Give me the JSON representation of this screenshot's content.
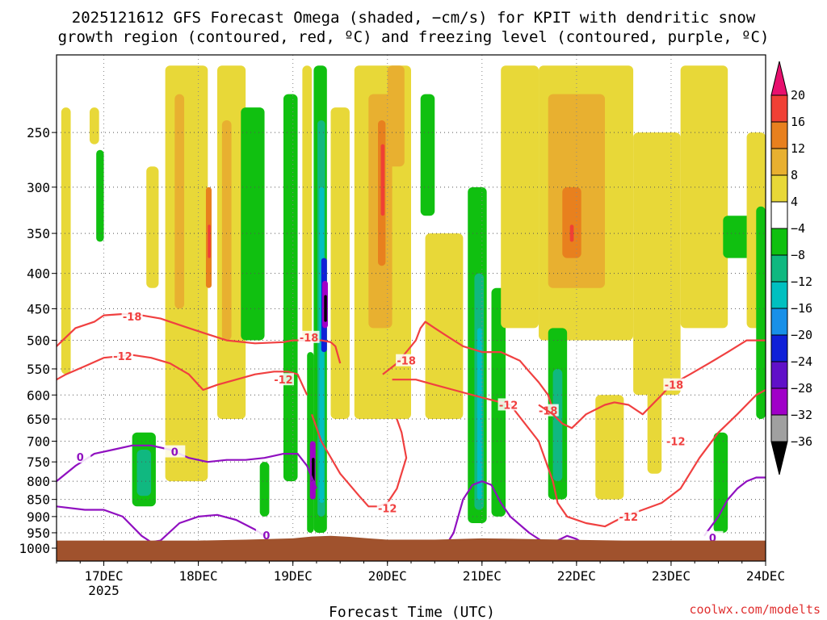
{
  "chart_data": {
    "type": "heatmap",
    "title_line1": "2025121612 GFS Forecast Omega (shaded, −cm/s) for KPIT with dendritic snow",
    "title_line2": "growth region (contoured, red, ºC) and freezing level (contoured, purple, ºC)",
    "xlabel": "Forecast Time (UTC)",
    "credit": "coolwx.com/modelts",
    "x_range": [
      16.5,
      24.0
    ],
    "x_ticks": [
      {
        "value": 17,
        "label": "17DEC",
        "sublabel": "2025"
      },
      {
        "value": 18,
        "label": "18DEC"
      },
      {
        "value": 19,
        "label": "19DEC"
      },
      {
        "value": 20,
        "label": "20DEC"
      },
      {
        "value": 21,
        "label": "21DEC"
      },
      {
        "value": 22,
        "label": "22DEC"
      },
      {
        "value": 23,
        "label": "23DEC"
      },
      {
        "value": 24,
        "label": "24DEC"
      }
    ],
    "y_axis": "pressure (hPa), log scale",
    "y_range": [
      1044,
      193
    ],
    "y_ticks": [
      {
        "value": 250,
        "label": "250"
      },
      {
        "value": 300,
        "label": "300"
      },
      {
        "value": 350,
        "label": "350"
      },
      {
        "value": 400,
        "label": "400"
      },
      {
        "value": 450,
        "label": "450"
      },
      {
        "value": 500,
        "label": "500"
      },
      {
        "value": 550,
        "label": "550"
      },
      {
        "value": 600,
        "label": "600"
      },
      {
        "value": 650,
        "label": "650"
      },
      {
        "value": 700,
        "label": "700"
      },
      {
        "value": 750,
        "label": "750"
      },
      {
        "value": 800,
        "label": "800"
      },
      {
        "value": 850,
        "label": "850"
      },
      {
        "value": 900,
        "label": "900"
      },
      {
        "value": 950,
        "label": "950"
      },
      {
        "value": 1000,
        "label": "1000"
      }
    ],
    "colorbar": {
      "levels": [
        20,
        16,
        12,
        8,
        4,
        -4,
        -8,
        -12,
        -16,
        -20,
        -24,
        -28,
        -32,
        -36
      ],
      "labels": [
        "20",
        "16",
        "12",
        "8",
        "4",
        "−4",
        "−8",
        "−12",
        "−16",
        "−20",
        "−24",
        "−28",
        "−32",
        "−36"
      ],
      "colors": [
        "#e8106e",
        "#f04035",
        "#e8801e",
        "#e8b030",
        "#e8d838",
        "#ffffff",
        "#10c010",
        "#10b880",
        "#00c0c0",
        "#1890e8",
        "#1020d8",
        "#6010c8",
        "#a000c8",
        "#a0a0a0",
        "#000000"
      ]
    },
    "shaded_regions": [
      {
        "x0": 16.55,
        "x1": 16.65,
        "p0": 230,
        "p1": 560,
        "level": 4
      },
      {
        "x0": 16.85,
        "x1": 16.95,
        "p0": 230,
        "p1": 260,
        "level": 4
      },
      {
        "x0": 16.92,
        "x1": 17.0,
        "p0": 265,
        "p1": 360,
        "level": -4
      },
      {
        "x0": 17.45,
        "x1": 17.58,
        "p0": 280,
        "p1": 420,
        "level": 4
      },
      {
        "x0": 17.65,
        "x1": 18.1,
        "p0": 200,
        "p1": 800,
        "level": 4
      },
      {
        "x0": 17.75,
        "x1": 17.85,
        "p0": 220,
        "p1": 450,
        "level": 8
      },
      {
        "x0": 18.08,
        "x1": 18.14,
        "p0": 300,
        "p1": 420,
        "level": 12
      },
      {
        "x0": 18.1,
        "x1": 18.13,
        "p0": 340,
        "p1": 380,
        "level": 16
      },
      {
        "x0": 18.2,
        "x1": 18.5,
        "p0": 200,
        "p1": 650,
        "level": 4
      },
      {
        "x0": 18.25,
        "x1": 18.35,
        "p0": 240,
        "p1": 500,
        "level": 8
      },
      {
        "x0": 18.45,
        "x1": 18.7,
        "p0": 230,
        "p1": 500,
        "level": -4
      },
      {
        "x0": 18.9,
        "x1": 19.05,
        "p0": 220,
        "p1": 800,
        "level": -4
      },
      {
        "x0": 19.1,
        "x1": 19.2,
        "p0": 200,
        "p1": 500,
        "level": 4
      },
      {
        "x0": 19.15,
        "x1": 19.22,
        "p0": 520,
        "p1": 950,
        "level": -4
      },
      {
        "x0": 19.22,
        "x1": 19.36,
        "p0": 200,
        "p1": 950,
        "level": -4
      },
      {
        "x0": 19.26,
        "x1": 19.34,
        "p0": 240,
        "p1": 900,
        "level": -8
      },
      {
        "x0": 19.28,
        "x1": 19.33,
        "p0": 300,
        "p1": 860,
        "level": -12
      },
      {
        "x0": 19.3,
        "x1": 19.36,
        "p0": 380,
        "p1": 520,
        "level": -20
      },
      {
        "x0": 19.31,
        "x1": 19.37,
        "p0": 410,
        "p1": 480,
        "level": -28
      },
      {
        "x0": 19.33,
        "x1": 19.36,
        "p0": 430,
        "p1": 470,
        "level": -36
      },
      {
        "x0": 19.18,
        "x1": 19.24,
        "p0": 700,
        "p1": 850,
        "level": -28
      },
      {
        "x0": 19.2,
        "x1": 19.23,
        "p0": 740,
        "p1": 800,
        "level": -36
      },
      {
        "x0": 19.4,
        "x1": 19.6,
        "p0": 230,
        "p1": 650,
        "level": 4
      },
      {
        "x0": 19.65,
        "x1": 20.25,
        "p0": 200,
        "p1": 650,
        "level": 4
      },
      {
        "x0": 19.8,
        "x1": 20.05,
        "p0": 220,
        "p1": 480,
        "level": 8
      },
      {
        "x0": 19.9,
        "x1": 19.98,
        "p0": 240,
        "p1": 390,
        "level": 12
      },
      {
        "x0": 19.93,
        "x1": 19.97,
        "p0": 260,
        "p1": 330,
        "level": 16
      },
      {
        "x0": 20.0,
        "x1": 20.18,
        "p0": 200,
        "p1": 280,
        "level": 8
      },
      {
        "x0": 20.35,
        "x1": 20.5,
        "p0": 220,
        "p1": 330,
        "level": -4
      },
      {
        "x0": 20.4,
        "x1": 20.8,
        "p0": 350,
        "p1": 650,
        "level": 4
      },
      {
        "x0": 20.85,
        "x1": 21.05,
        "p0": 300,
        "p1": 920,
        "level": -4
      },
      {
        "x0": 20.92,
        "x1": 21.02,
        "p0": 400,
        "p1": 880,
        "level": -8
      },
      {
        "x0": 20.95,
        "x1": 21.0,
        "p0": 480,
        "p1": 850,
        "level": -12
      },
      {
        "x0": 21.1,
        "x1": 21.25,
        "p0": 420,
        "p1": 900,
        "level": -4
      },
      {
        "x0": 21.2,
        "x1": 21.6,
        "p0": 200,
        "p1": 480,
        "level": 4
      },
      {
        "x0": 21.6,
        "x1": 22.6,
        "p0": 200,
        "p1": 500,
        "level": 4
      },
      {
        "x0": 21.7,
        "x1": 22.3,
        "p0": 220,
        "p1": 420,
        "level": 8
      },
      {
        "x0": 21.85,
        "x1": 22.05,
        "p0": 300,
        "p1": 380,
        "level": 12
      },
      {
        "x0": 21.93,
        "x1": 21.97,
        "p0": 340,
        "p1": 360,
        "level": 16
      },
      {
        "x0": 21.7,
        "x1": 21.9,
        "p0": 480,
        "p1": 850,
        "level": -4
      },
      {
        "x0": 21.75,
        "x1": 21.85,
        "p0": 550,
        "p1": 800,
        "level": -8
      },
      {
        "x0": 22.2,
        "x1": 22.5,
        "p0": 600,
        "p1": 850,
        "level": 4
      },
      {
        "x0": 22.6,
        "x1": 23.1,
        "p0": 250,
        "p1": 600,
        "level": 4
      },
      {
        "x0": 22.75,
        "x1": 22.9,
        "p0": 550,
        "p1": 780,
        "level": 4
      },
      {
        "x0": 23.1,
        "x1": 23.6,
        "p0": 200,
        "p1": 480,
        "level": 4
      },
      {
        "x0": 23.45,
        "x1": 23.6,
        "p0": 680,
        "p1": 950,
        "level": -4
      },
      {
        "x0": 23.55,
        "x1": 23.9,
        "p0": 330,
        "p1": 380,
        "level": -4
      },
      {
        "x0": 23.8,
        "x1": 24.0,
        "p0": 250,
        "p1": 480,
        "level": 4
      },
      {
        "x0": 23.9,
        "x1": 24.0,
        "p0": 320,
        "p1": 650,
        "level": -4
      },
      {
        "x0": 17.3,
        "x1": 17.55,
        "p0": 680,
        "p1": 870,
        "level": -4
      },
      {
        "x0": 17.35,
        "x1": 17.5,
        "p0": 720,
        "p1": 840,
        "level": -8
      },
      {
        "x0": 18.65,
        "x1": 18.75,
        "p0": 750,
        "p1": 900,
        "level": -4
      }
    ],
    "contours": [
      {
        "name": "dgz-upper",
        "label": "-18",
        "color": "#f04040",
        "x": [
          16.5,
          16.7,
          16.9,
          17.0,
          17.2,
          17.4,
          17.6,
          17.7,
          17.9,
          18.1,
          18.3,
          18.6,
          18.9,
          19.0,
          19.1,
          19.3,
          19.4,
          19.45,
          19.5
        ],
        "p": [
          510,
          480,
          470,
          460,
          458,
          460,
          465,
          470,
          480,
          490,
          500,
          505,
          503,
          500,
          500,
          500,
          503,
          510,
          540
        ],
        "labels": [
          {
            "x": 17.3,
            "p": 462,
            "text": "-18"
          },
          {
            "x": 19.17,
            "p": 495,
            "text": "-18"
          }
        ]
      },
      {
        "name": "dgz-mid",
        "label": "-18",
        "color": "#f04040",
        "x": [
          19.95,
          20.1,
          20.2,
          20.3,
          20.35,
          20.4,
          20.5,
          20.6,
          20.7,
          20.8,
          21.0,
          21.2,
          21.4,
          21.5,
          21.6,
          21.7,
          21.75
        ],
        "p": [
          560,
          540,
          520,
          500,
          480,
          470,
          480,
          490,
          500,
          510,
          520,
          520,
          535,
          555,
          575,
          600,
          630
        ],
        "labels": [
          {
            "x": 20.2,
            "p": 535,
            "text": "-18"
          },
          {
            "x": 21.7,
            "p": 632,
            "text": "-18"
          }
        ]
      },
      {
        "name": "dgz-right",
        "label": "-18",
        "color": "#f04040",
        "x": [
          21.6,
          21.75,
          21.85,
          21.95,
          22.0,
          22.1,
          22.3,
          22.4,
          22.55,
          22.7,
          22.9,
          23.0,
          23.2,
          23.4,
          23.6,
          23.8,
          24.0
        ],
        "p": [
          620,
          640,
          660,
          670,
          660,
          640,
          620,
          615,
          620,
          640,
          600,
          580,
          560,
          540,
          520,
          500,
          500
        ],
        "labels": [
          {
            "x": 23.03,
            "p": 580,
            "text": "-18"
          }
        ]
      },
      {
        "name": "dgz-lower",
        "label": "-12",
        "color": "#f04040",
        "x": [
          16.5,
          16.6,
          16.8,
          17.0,
          17.3,
          17.5,
          17.7,
          17.9,
          18.05,
          18.2,
          18.4,
          18.6,
          18.8,
          18.95,
          19.05,
          19.15
        ],
        "p": [
          570,
          560,
          545,
          530,
          525,
          530,
          540,
          560,
          590,
          580,
          570,
          560,
          555,
          555,
          560,
          600
        ],
        "labels": [
          {
            "x": 17.2,
            "p": 527,
            "text": "-12"
          },
          {
            "x": 18.9,
            "p": 570,
            "text": "-12"
          }
        ]
      },
      {
        "name": "dgz-lower-b",
        "label": "-12",
        "color": "#f04040",
        "x": [
          19.2,
          19.3,
          19.5,
          19.7,
          19.8,
          19.9,
          20.0,
          20.1,
          20.2,
          20.15,
          20.1
        ],
        "p": [
          640,
          700,
          780,
          840,
          870,
          870,
          860,
          820,
          740,
          680,
          650
        ],
        "labels": [
          {
            "x": 20.0,
            "p": 875,
            "text": "-12"
          }
        ]
      },
      {
        "name": "dgz-lower-c",
        "label": "-12",
        "color": "#f04040",
        "x": [
          20.05,
          20.3,
          20.5,
          20.7,
          20.9,
          21.1,
          21.3,
          21.6,
          21.75,
          21.8,
          21.9,
          22.1,
          22.3,
          22.5,
          22.7,
          22.9,
          23.1,
          23.3,
          23.5,
          23.7,
          23.9,
          24.0
        ],
        "p": [
          570,
          570,
          580,
          590,
          600,
          610,
          620,
          700,
          800,
          860,
          900,
          920,
          930,
          900,
          880,
          860,
          820,
          740,
          680,
          640,
          600,
          590
        ],
        "labels": [
          {
            "x": 21.28,
            "p": 620,
            "text": "-12"
          },
          {
            "x": 22.55,
            "p": 900,
            "text": "-12"
          },
          {
            "x": 23.05,
            "p": 700,
            "text": "-12"
          }
        ]
      },
      {
        "name": "freezing-level",
        "label": "0",
        "color": "#9010c0",
        "x": [
          16.5,
          16.7,
          16.9,
          17.1,
          17.3,
          17.5,
          17.7,
          17.9,
          18.1,
          18.3,
          18.5,
          18.7,
          18.9,
          19.05,
          19.15,
          19.25
        ],
        "p": [
          800,
          760,
          730,
          720,
          710,
          710,
          720,
          740,
          750,
          745,
          745,
          740,
          730,
          730,
          760,
          820
        ],
        "labels": [
          {
            "x": 16.75,
            "p": 738,
            "text": "0"
          },
          {
            "x": 17.75,
            "p": 725,
            "text": "0"
          }
        ]
      },
      {
        "name": "freezing-level-b",
        "label": "0",
        "color": "#9010c0",
        "x": [
          16.5,
          16.8,
          17.0,
          17.2,
          17.4,
          17.5,
          17.6,
          17.8,
          18.0,
          18.2,
          18.4,
          18.6,
          18.7
        ],
        "p": [
          870,
          880,
          880,
          900,
          960,
          980,
          975,
          920,
          900,
          895,
          910,
          940,
          960
        ],
        "labels": [
          {
            "x": 18.72,
            "p": 958,
            "text": "0"
          }
        ]
      },
      {
        "name": "freezing-level-c",
        "label": "0",
        "color": "#9010c0",
        "x": [
          20.6,
          20.7,
          20.8,
          20.9,
          21.0,
          21.1,
          21.2,
          21.3,
          21.5,
          21.7,
          21.9,
          22.0,
          22.1,
          22.2
        ],
        "p": [
          1000,
          950,
          850,
          810,
          800,
          810,
          860,
          900,
          950,
          990,
          960,
          970,
          990,
          1000
        ],
        "labels": []
      },
      {
        "name": "freezing-level-d",
        "label": "0",
        "color": "#9010c0",
        "x": [
          23.35,
          23.5,
          23.6,
          23.7,
          23.8,
          23.9,
          24.0
        ],
        "p": [
          960,
          900,
          850,
          820,
          800,
          790,
          790
        ],
        "labels": [
          {
            "x": 23.44,
            "p": 965,
            "text": "0"
          }
        ]
      }
    ],
    "terrain": {
      "color": "#a0522d",
      "x": [
        16.5,
        17.0,
        17.5,
        18.0,
        18.5,
        19.0,
        19.2,
        19.4,
        19.6,
        19.8,
        20.0,
        20.5,
        21.0,
        21.5,
        22.0,
        22.5,
        23.0,
        23.5,
        24.0
      ],
      "p": [
        975,
        975,
        975,
        975,
        972,
        968,
        962,
        960,
        963,
        968,
        972,
        972,
        968,
        970,
        973,
        975,
        975,
        975,
        975
      ]
    }
  }
}
